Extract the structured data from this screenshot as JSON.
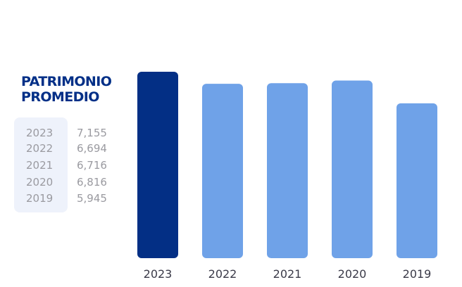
{
  "colors": {
    "highlight_bar": "#032f85",
    "bar": "#6fa2e8",
    "title": "#012f87",
    "table_bg": "#eef2fb",
    "table_text": "#9a9aa0",
    "axis_text": "#3a3a48"
  },
  "chart_data": {
    "type": "bar",
    "title_lines": [
      "PATRIMONIO",
      "PROMEDIO"
    ],
    "categories": [
      "2023",
      "2022",
      "2021",
      "2020",
      "2019"
    ],
    "values": [
      7155,
      6694,
      6716,
      6816,
      5945
    ],
    "value_labels": [
      "7,155",
      "6,694",
      "6,716",
      "6,816",
      "5,945"
    ],
    "highlight_index": 0,
    "ylim": [
      0,
      7155
    ],
    "grid": false,
    "legend_table": {
      "placement": "left",
      "rows": [
        {
          "year": "2023",
          "value": "7,155"
        },
        {
          "year": "2022",
          "value": "6,694"
        },
        {
          "year": "2021",
          "value": "6,716"
        },
        {
          "year": "2020",
          "value": "6,816"
        },
        {
          "year": "2019",
          "value": "5,945"
        }
      ]
    }
  }
}
